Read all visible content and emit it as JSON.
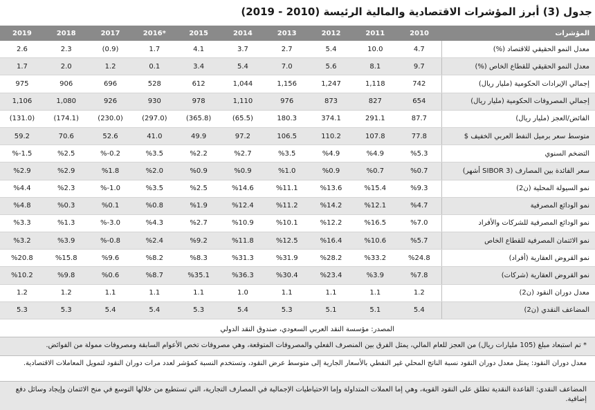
{
  "title": "جدول (3) أبرز المؤشرات الاقتصادية والمالية الرئيسة (2010 - 2019)",
  "header": {
    "label": "المؤشرات",
    "years": [
      "2010",
      "2011",
      "2012",
      "2013",
      "2014",
      "2015",
      "*2016",
      "2017",
      "2018",
      "2019"
    ]
  },
  "rows": [
    {
      "label": "معدل النمو الحقيقي للاقتصاد (%)",
      "values": [
        "4.7",
        "10.0",
        "5.4",
        "2.7",
        "3.7",
        "4.1",
        "1.7",
        "(0.9)",
        "2.3",
        "2.6"
      ]
    },
    {
      "label": "معدل النمو الحقيقي للقطاع الخاص (%)",
      "values": [
        "9.7",
        "8.1",
        "5.6",
        "7.0",
        "5.4",
        "3.4",
        "0.1",
        "1.2",
        "2.0",
        "1.7"
      ]
    },
    {
      "label": "إجمالي الإيرادات الحكومية (مليار ريال)",
      "values": [
        "742",
        "1,118",
        "1,247",
        "1,156",
        "1,044",
        "612",
        "528",
        "696",
        "906",
        "975"
      ]
    },
    {
      "label": "إجمالي المصروفات الحكومية (مليار ريال)",
      "values": [
        "654",
        "827",
        "873",
        "976",
        "1,110",
        "978",
        "930",
        "926",
        "1,080",
        "1,106"
      ]
    },
    {
      "label": "الفائض/العجز (مليار ريال)",
      "values": [
        "87.7",
        "291.1",
        "374.1",
        "180.3",
        "(65.5)",
        "(365.8)",
        "(297.0)",
        "(230.0)",
        "(174.1)",
        "(131.0)"
      ]
    },
    {
      "label": "متوسط سعر برميل النفط العربي الخفيف $",
      "values": [
        "77.8",
        "107.8",
        "110.2",
        "106.5",
        "97.2",
        "49.9",
        "41.0",
        "52.6",
        "70.6",
        "59.2"
      ]
    },
    {
      "label": "التضخم السنوي",
      "values": [
        "%5.3",
        "%4.9",
        "%4.9",
        "%3.5",
        "%2.7",
        "%2.2",
        "%3.5",
        "%-0.2",
        "%2.5",
        "%-1.5"
      ]
    },
    {
      "label": "سعر الفائدة بين المصارف (SIBOR 3 أشهر)",
      "values": [
        "%0.7",
        "%0.7",
        "%0.9",
        "%1.0",
        "%0.9",
        "%0.9",
        "%2.0",
        "%1.8",
        "%2.9",
        "%2.9"
      ]
    },
    {
      "label": "نمو السيولة المحلية (ن2)",
      "values": [
        "%9.3",
        "%15.4",
        "%13.6",
        "%11.1",
        "%14.6",
        "%2.5",
        "%3.5",
        "%-1.0",
        "%2.3",
        "%4.4"
      ]
    },
    {
      "label": "نمو الودائع المصرفية",
      "values": [
        "%4.7",
        "%12.1",
        "%14.2",
        "%11.2",
        "%12.4",
        "%1.9",
        "%0.8",
        "%0.1",
        "%0.3",
        "%4.8"
      ]
    },
    {
      "label": "نمو الودائع المصرفية للشركات والأفراد",
      "values": [
        "%7.0",
        "%16.5",
        "%12.2",
        "%10.1",
        "%10.9",
        "%2.7",
        "%4.3",
        "%-3.0",
        "%1.3",
        "%3.3"
      ]
    },
    {
      "label": "نمو الائتمان المصرفية للقطاع الخاص",
      "values": [
        "%5.7",
        "%10.6",
        "%16.4",
        "%12.5",
        "%11.8",
        "%9.2",
        "%2.4",
        "%-0.8",
        "%3.9",
        "%3.2"
      ]
    },
    {
      "label": "نمو القروض العقارية (أفراد)",
      "values": [
        "%24.8",
        "%33.2",
        "%28.2",
        "%31.9",
        "%31.3",
        "%8.3",
        "%8.2",
        "%9.6",
        "%15.8",
        "%20.8"
      ]
    },
    {
      "label": "نمو القروض العقارية (شركات)",
      "values": [
        "%7.8",
        "%3.9",
        "%23.4",
        "%30.4",
        "%36.3",
        "%35.1",
        "%8.7",
        "%0.6",
        "%9.8",
        "%10.2"
      ]
    },
    {
      "label": "معدل دوران النقود (ن2)",
      "values": [
        "1.2",
        "1.1",
        "1.1",
        "1.1",
        "1.0",
        "1.1",
        "1.1",
        "1.1",
        "1.2",
        "1.2"
      ]
    },
    {
      "label": "المضاعف النقدي (ن2)",
      "values": [
        "5.4",
        "5.1",
        "5.1",
        "5.3",
        "5.4",
        "5.3",
        "5.4",
        "5.4",
        "5.3",
        "5.3"
      ]
    }
  ],
  "notes": {
    "source": "المصدر: مؤسسة النقد العربي السعودي، صندوق النقد الدولي",
    "note1": "* تم استبعاد مبلغ (105 مليارات ريال) من العجز للعام المالي، يمثل الفرق بين المنصرف الفعلي والمصروفات المتوقعة، وهي مصروفات تخص الأعوام السابقة ومصروفات ممولة من الفوائض.",
    "note2": "معدل دوران النقود: يمثل معدل دوران النقود نسبة الناتج المحلي غير النفطي بالأسعار الجارية إلى متوسط عرض النقود، وتستخدم النسبة كمؤشر لعدد مرات دوران النقود لتمويل المعاملات الاقتصادية.",
    "note3": "المضاعف النقدي: القاعدة النقدية تطلق على النقود القوية، وهي إما العملات المتداولة وإما الاحتياطيات الإجمالية في المصارف التجارية، التي تستطيع من خلالها التوسع في منح الائتمان وإيجاد وسائل دفع إضافية."
  }
}
